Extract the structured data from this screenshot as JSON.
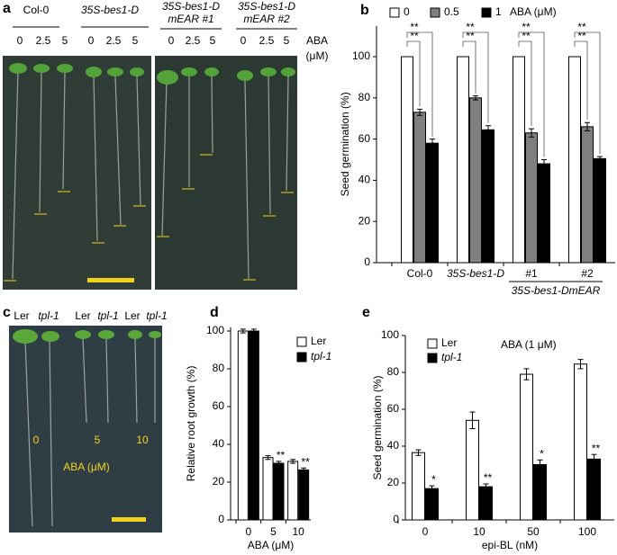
{
  "photo_a": {
    "panel": "a",
    "groups": [
      [
        "Col-0"
      ],
      [
        "35S-bes1-D"
      ],
      [
        "35S-bes1-D",
        "mEAR #1"
      ],
      [
        "35S-bes1-D",
        "mEAR #2"
      ]
    ],
    "doses": [
      "0",
      "2.5",
      "5"
    ],
    "unit": [
      "ABA",
      "(μM)"
    ]
  },
  "photo_c": {
    "panel": "c",
    "genotypes": [
      "Ler",
      "tpl-1"
    ],
    "doses": [
      "0",
      "5",
      "10"
    ],
    "unit": "ABA (μM)"
  },
  "chart_data": [
    {
      "type": "bar",
      "panel": "b",
      "ylabel": "Seed germination (%)",
      "legend_title": "ABA (μM)",
      "categories": [
        "Col-0",
        "35S-bes1-D",
        "#1",
        "#2"
      ],
      "category_group": "35S-bes1-DmEAR",
      "series": [
        {
          "name": "0",
          "color": "#ffffff",
          "values": [
            100,
            100,
            100,
            100
          ]
        },
        {
          "name": "0.5",
          "color": "#7f7f7f",
          "values": [
            73,
            80,
            63,
            66
          ],
          "errors": [
            1.5,
            1,
            2,
            2
          ],
          "significance": [
            "**",
            "**",
            "**",
            "**"
          ]
        },
        {
          "name": "1",
          "color": "#000000",
          "values": [
            58,
            64.5,
            48,
            50.5
          ],
          "errors": [
            2,
            2,
            2,
            1
          ],
          "significance": [
            "**",
            "**",
            "**",
            "**"
          ]
        }
      ],
      "ylim": [
        0,
        115
      ],
      "yticks": [
        0,
        20,
        40,
        60,
        80,
        100
      ]
    },
    {
      "type": "bar",
      "panel": "d",
      "ylabel": "Relative root growth (%)",
      "xlabel": "ABA (μM)",
      "categories": [
        "0",
        "5",
        "10"
      ],
      "series": [
        {
          "name": "Ler",
          "color": "#ffffff",
          "values": [
            100,
            33,
            31
          ],
          "errors": [
            1,
            1,
            1
          ]
        },
        {
          "name": "tpl-1",
          "color": "#000000",
          "values": [
            100,
            30,
            26.5
          ],
          "errors": [
            1,
            1,
            1
          ],
          "significance": [
            null,
            "**",
            "**"
          ]
        }
      ],
      "ylim": [
        0,
        102
      ],
      "yticks": [
        0,
        20,
        40,
        60,
        80,
        100
      ]
    },
    {
      "type": "bar",
      "panel": "e",
      "ylabel": "Seed germination (%)",
      "xlabel": "epi-BL (nM)",
      "annotation": "ABA (1 μM)",
      "categories": [
        "0",
        "10",
        "50",
        "100"
      ],
      "series": [
        {
          "name": "Ler",
          "color": "#ffffff",
          "values": [
            36.5,
            54,
            79,
            84.5
          ],
          "errors": [
            1.5,
            4.5,
            3,
            2.5
          ]
        },
        {
          "name": "tpl-1",
          "color": "#000000",
          "values": [
            17,
            18,
            30,
            33
          ],
          "errors": [
            1.5,
            1.5,
            2.5,
            2.5
          ],
          "significance": [
            "*",
            "**",
            "*",
            "**"
          ]
        }
      ],
      "ylim": [
        0,
        100
      ],
      "yticks": [
        0,
        20,
        40,
        60,
        80,
        100
      ]
    }
  ]
}
